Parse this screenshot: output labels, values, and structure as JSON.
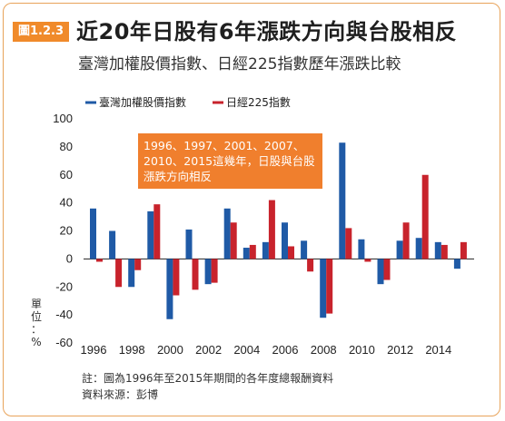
{
  "badge": "圖1.2.3",
  "title": "近20年日股有6年漲跌方向與台股相反",
  "subtitle": "臺灣加權股價指數、日經225指數歷年漲跌比較",
  "callout": "1996、1997、2001、2007、2010、2015這幾年，日股與台股漲跌方向相反",
  "ylabel_chars": [
    "單",
    "位",
    "：",
    "%"
  ],
  "footnote_1": "註：圖為1996年至2015年期間的各年度總報酬資料",
  "footnote_2": "資料來源：彭博",
  "colors": {
    "taiwan": "#1f5aa6",
    "nikkei": "#c8232c",
    "badge": "#f08a2a",
    "frame": "#e8a35a"
  },
  "chart_data": {
    "type": "bar",
    "title": "近20年日股有6年漲跌方向與台股相反",
    "subtitle": "臺灣加權股價指數、日經225指數歷年漲跌比較",
    "ylabel": "單位：%",
    "xlabel": "",
    "ylim": [
      -60,
      100
    ],
    "yticks": [
      -60,
      -40,
      -20,
      0,
      20,
      40,
      60,
      80,
      100
    ],
    "xtick_labels": [
      "1996",
      "1998",
      "2000",
      "2002",
      "2004",
      "2006",
      "2008",
      "2010",
      "2012",
      "2014"
    ],
    "categories": [
      "1996",
      "1997",
      "1998",
      "1999",
      "2000",
      "2001",
      "2002",
      "2003",
      "2004",
      "2005",
      "2006",
      "2007",
      "2008",
      "2009",
      "2010",
      "2011",
      "2012",
      "2013",
      "2014",
      "2015"
    ],
    "legend_position": "top-left",
    "series": [
      {
        "name": "臺灣加權股價指數",
        "values": [
          36,
          20,
          -20,
          34,
          -43,
          21,
          -18,
          36,
          8,
          12,
          26,
          13,
          -42,
          83,
          14,
          -18,
          13,
          15,
          12,
          -7
        ]
      },
      {
        "name": "日經225指數",
        "values": [
          -2,
          -20,
          -8,
          39,
          -26,
          -22,
          -17,
          26,
          10,
          42,
          9,
          -9,
          -39,
          22,
          -2,
          -15,
          26,
          60,
          10,
          12
        ]
      }
    ]
  }
}
